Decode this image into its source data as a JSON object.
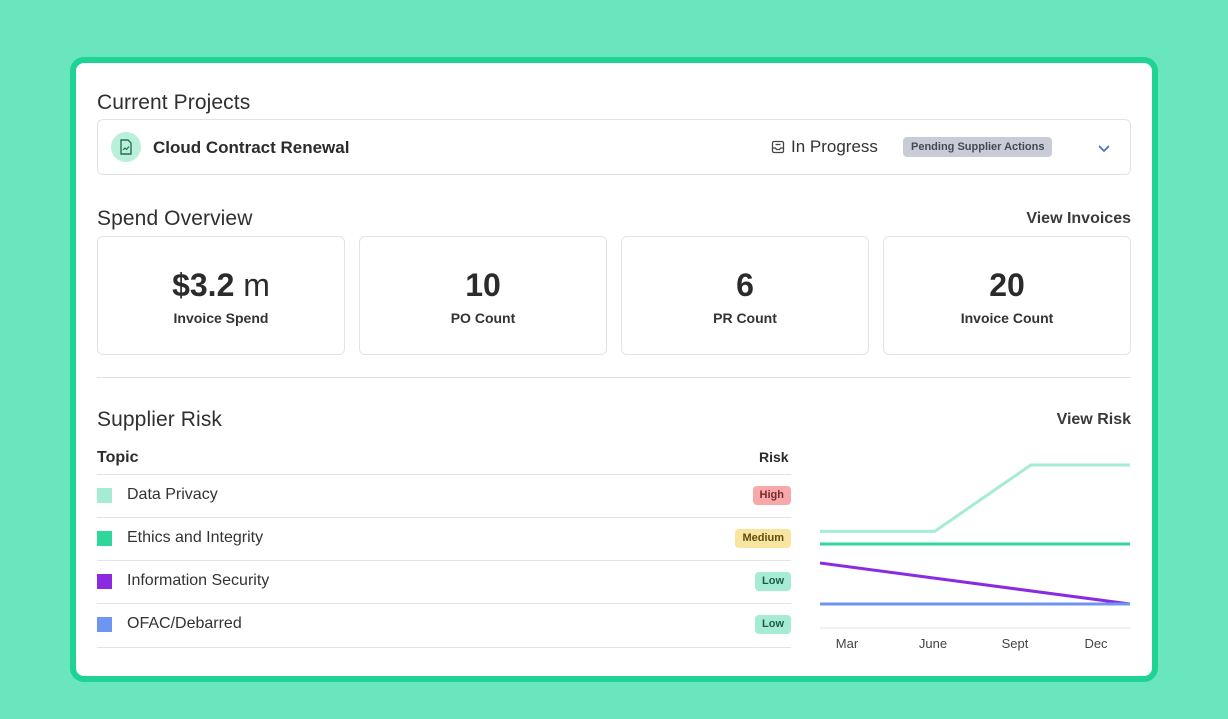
{
  "current_projects": {
    "heading": "Current Projects",
    "project": {
      "title": "Cloud Contract Renewal",
      "icon": "document-icon",
      "status": "In Progress",
      "status_icon": "inbox-icon",
      "badge": "Pending Supplier Actions"
    }
  },
  "spend": {
    "heading": "Spend Overview",
    "link": "View Invoices",
    "cards": [
      {
        "value": "$3.2",
        "unit": " m",
        "label": "Invoice Spend"
      },
      {
        "value": "10",
        "unit": "",
        "label": "PO Count"
      },
      {
        "value": "6",
        "unit": "",
        "label": "PR Count"
      },
      {
        "value": "20",
        "unit": "",
        "label": "Invoice Count"
      }
    ]
  },
  "risk": {
    "heading": "Supplier Risk",
    "link": "View Risk",
    "col_topic": "Topic",
    "col_risk": "Risk",
    "rows": [
      {
        "topic": "Data Privacy",
        "level": "High",
        "swatch": "#a6ecd4",
        "badge_bg": "#f7a8a8",
        "badge_fg": "#7a2b2b"
      },
      {
        "topic": "Ethics and Integrity",
        "level": "Medium",
        "swatch": "#2fd89a",
        "badge_bg": "#f8e6a0",
        "badge_fg": "#5e4d10"
      },
      {
        "topic": "Information Security",
        "level": "Low",
        "swatch": "#8a2be2",
        "badge_bg": "#a6ecd4",
        "badge_fg": "#1e5c46"
      },
      {
        "topic": "OFAC/Debarred",
        "level": "Low",
        "swatch": "#6f95f2",
        "badge_bg": "#a6ecd4",
        "badge_fg": "#1e5c46"
      }
    ]
  },
  "chart_data": {
    "type": "line",
    "categories": [
      "Mar",
      "June",
      "Sept",
      "Dec"
    ],
    "title": "",
    "xlabel": "",
    "ylabel": "",
    "grid": false,
    "series": [
      {
        "color": "#a6ecd4",
        "points": [
          [
            0,
            0.58
          ],
          [
            0.37,
            0.58
          ],
          [
            0.68,
            1.0
          ],
          [
            1.0,
            1.0
          ]
        ]
      },
      {
        "color": "#2fd89a",
        "points": [
          [
            0,
            0.5
          ],
          [
            1.0,
            0.5
          ]
        ]
      },
      {
        "color": "#8a2be2",
        "points": [
          [
            0,
            0.38
          ],
          [
            1.0,
            0.12
          ]
        ]
      },
      {
        "color": "#6f95f2",
        "points": [
          [
            0,
            0.12
          ],
          [
            1.0,
            0.12
          ]
        ]
      }
    ]
  }
}
